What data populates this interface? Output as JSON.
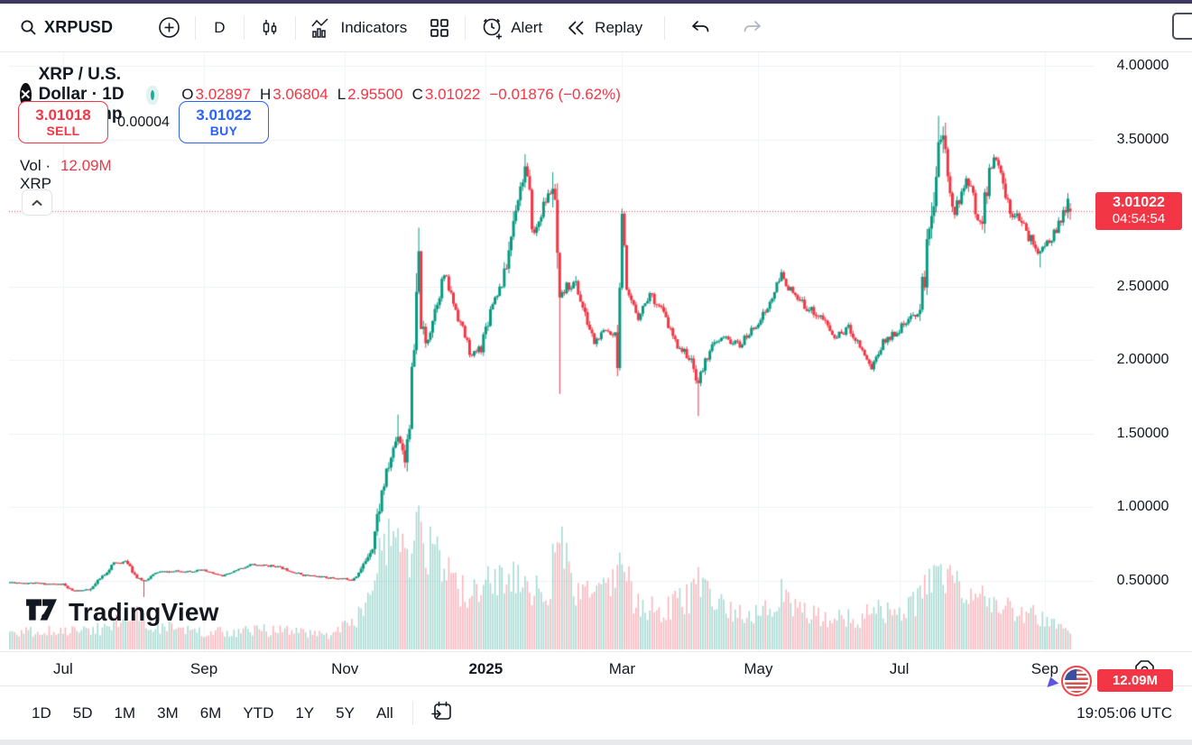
{
  "colors": {
    "up": "#089981",
    "down": "#f23645",
    "up_volume": "rgba(8,153,129,0.36)",
    "down_volume": "rgba(242,54,69,0.36)",
    "buy_blue": "#2962ff",
    "sell_red": "#f23645",
    "tag_red": "#f23645",
    "grid": "#eef1f7",
    "grid_vertical": "#f1f3f8",
    "axis_text": "#131722",
    "disabled_icon": "#b2b5be",
    "status_dot": "#22ab94"
  },
  "top_toolbar": {
    "symbol": "XRPUSD",
    "interval": "D",
    "indicators_label": "Indicators",
    "alert_label": "Alert",
    "replay_label": "Replay"
  },
  "legend": {
    "title": "XRP / U.S. Dollar · 1D · Bitstamp",
    "ohlc": {
      "o_label": "O",
      "o": "3.02897",
      "h_label": "H",
      "h": "3.06804",
      "l_label": "L",
      "l": "2.95500",
      "c_label": "C",
      "c": "3.01022",
      "change": "−0.01876 (−0.62%)"
    },
    "sell": {
      "price": "3.01018",
      "label": "SELL"
    },
    "spread": "0.00004",
    "buy": {
      "price": "3.01022",
      "label": "BUY"
    },
    "vol_label": "Vol · XRP",
    "vol_value": "12.09M"
  },
  "watermark_text": "TradingView",
  "price_axis": {
    "labeled_ticks": [
      4.0,
      3.5,
      2.5,
      2.0,
      1.5,
      1.0,
      0.5
    ],
    "last_price_tag": {
      "price": "3.01022",
      "countdown": "04:54:54"
    },
    "volume_tag": "12.09M"
  },
  "time_axis": {
    "ticks": [
      {
        "label": "Jul",
        "day": 23,
        "bold": false
      },
      {
        "label": "Sep",
        "day": 84,
        "bold": false
      },
      {
        "label": "Nov",
        "day": 145,
        "bold": false
      },
      {
        "label": "2025",
        "day": 206,
        "bold": true
      },
      {
        "label": "Mar",
        "day": 265,
        "bold": false
      },
      {
        "label": "May",
        "day": 324,
        "bold": false
      },
      {
        "label": "Jul",
        "day": 385,
        "bold": false
      },
      {
        "label": "Sep",
        "day": 448,
        "bold": false
      }
    ]
  },
  "bottom_toolbar": {
    "ranges": [
      "1D",
      "5D",
      "1M",
      "3M",
      "6M",
      "YTD",
      "1Y",
      "5Y",
      "All"
    ],
    "clock": "19:05:06 UTC"
  },
  "chart_data": {
    "type": "candlestick",
    "title": "XRP / U.S. Dollar",
    "interval": "1D",
    "exchange": "Bitstamp",
    "ylim": [
      0.022,
      4.092
    ],
    "price_gridlines": [
      0.5,
      1.0,
      1.5,
      2.0,
      2.5,
      3.0,
      3.5,
      4.0
    ],
    "current_price": 3.01022,
    "days": 460,
    "seed": 11,
    "price_anchors": [
      [
        0,
        0.49
      ],
      [
        23,
        0.475
      ],
      [
        27,
        0.43
      ],
      [
        35,
        0.44
      ],
      [
        45,
        0.62
      ],
      [
        51,
        0.63
      ],
      [
        55,
        0.52
      ],
      [
        58,
        0.5
      ],
      [
        64,
        0.56
      ],
      [
        84,
        0.57
      ],
      [
        92,
        0.53
      ],
      [
        104,
        0.61
      ],
      [
        115,
        0.6
      ],
      [
        127,
        0.54
      ],
      [
        139,
        0.52
      ],
      [
        148,
        0.51
      ],
      [
        152,
        0.57
      ],
      [
        157,
        0.75
      ],
      [
        161,
        1.1
      ],
      [
        166,
        1.4
      ],
      [
        168,
        1.5
      ],
      [
        171,
        1.35
      ],
      [
        174,
        1.75
      ],
      [
        177,
        2.6
      ],
      [
        178,
        2.25
      ],
      [
        180,
        2.1
      ],
      [
        184,
        2.35
      ],
      [
        188,
        2.58
      ],
      [
        194,
        2.3
      ],
      [
        200,
        2.02
      ],
      [
        204,
        2.1
      ],
      [
        209,
        2.4
      ],
      [
        214,
        2.55
      ],
      [
        219,
        3.05
      ],
      [
        223,
        3.3
      ],
      [
        227,
        2.85
      ],
      [
        231,
        3.05
      ],
      [
        235,
        3.18
      ],
      [
        238,
        2.4
      ],
      [
        241,
        2.5
      ],
      [
        245,
        2.52
      ],
      [
        249,
        2.3
      ],
      [
        253,
        2.12
      ],
      [
        258,
        2.2
      ],
      [
        263,
        2.18
      ],
      [
        265,
        2.85
      ],
      [
        267,
        2.45
      ],
      [
        272,
        2.3
      ],
      [
        277,
        2.45
      ],
      [
        282,
        2.35
      ],
      [
        288,
        2.12
      ],
      [
        294,
        2.02
      ],
      [
        298,
        1.85
      ],
      [
        303,
        2.08
      ],
      [
        309,
        2.15
      ],
      [
        316,
        2.1
      ],
      [
        322,
        2.22
      ],
      [
        328,
        2.35
      ],
      [
        334,
        2.58
      ],
      [
        340,
        2.42
      ],
      [
        346,
        2.35
      ],
      [
        352,
        2.28
      ],
      [
        357,
        2.15
      ],
      [
        363,
        2.22
      ],
      [
        368,
        2.1
      ],
      [
        373,
        1.95
      ],
      [
        378,
        2.12
      ],
      [
        384,
        2.2
      ],
      [
        389,
        2.26
      ],
      [
        394,
        2.35
      ],
      [
        396,
        2.6
      ],
      [
        399,
        3.0
      ],
      [
        402,
        3.5
      ],
      [
        404,
        3.52
      ],
      [
        406,
        3.22
      ],
      [
        409,
        3.02
      ],
      [
        412,
        3.12
      ],
      [
        415,
        3.25
      ],
      [
        418,
        3.0
      ],
      [
        421,
        2.95
      ],
      [
        424,
        3.3
      ],
      [
        427,
        3.36
      ],
      [
        430,
        3.2
      ],
      [
        433,
        3.0
      ],
      [
        436,
        3.02
      ],
      [
        440,
        2.86
      ],
      [
        443,
        2.8
      ],
      [
        446,
        2.72
      ],
      [
        449,
        2.8
      ],
      [
        452,
        2.86
      ],
      [
        455,
        2.94
      ],
      [
        458,
        3.08
      ],
      [
        459,
        3.01022
      ]
    ],
    "wick_overrides": [
      {
        "day": 58,
        "low": 0.39
      },
      {
        "day": 168,
        "high": 1.63
      },
      {
        "day": 177,
        "high": 2.9
      },
      {
        "day": 223,
        "high": 3.4
      },
      {
        "day": 238,
        "low": 1.77
      },
      {
        "day": 265,
        "high": 3.03
      },
      {
        "day": 298,
        "low": 1.62
      },
      {
        "day": 402,
        "high": 3.66
      },
      {
        "day": 446,
        "low": 2.63
      }
    ],
    "last_candle": {
      "open": 3.02897,
      "high": 3.06804,
      "low": 2.955,
      "close": 3.01022
    },
    "volume": {
      "last_label": "12.09M",
      "anchors": [
        [
          0,
          0.13
        ],
        [
          40,
          0.16
        ],
        [
          57,
          0.3
        ],
        [
          60,
          0.2
        ],
        [
          84,
          0.13
        ],
        [
          110,
          0.15
        ],
        [
          140,
          0.12
        ],
        [
          150,
          0.25
        ],
        [
          157,
          0.5
        ],
        [
          161,
          0.75
        ],
        [
          166,
          0.85
        ],
        [
          171,
          0.65
        ],
        [
          177,
          1.0
        ],
        [
          182,
          0.8
        ],
        [
          188,
          0.6
        ],
        [
          196,
          0.45
        ],
        [
          204,
          0.42
        ],
        [
          210,
          0.6
        ],
        [
          219,
          0.55
        ],
        [
          224,
          0.5
        ],
        [
          231,
          0.4
        ],
        [
          238,
          0.8
        ],
        [
          245,
          0.45
        ],
        [
          253,
          0.4
        ],
        [
          265,
          0.6
        ],
        [
          272,
          0.35
        ],
        [
          282,
          0.3
        ],
        [
          294,
          0.4
        ],
        [
          298,
          0.5
        ],
        [
          305,
          0.35
        ],
        [
          316,
          0.28
        ],
        [
          328,
          0.3
        ],
        [
          334,
          0.42
        ],
        [
          346,
          0.3
        ],
        [
          357,
          0.25
        ],
        [
          368,
          0.25
        ],
        [
          373,
          0.3
        ],
        [
          385,
          0.28
        ],
        [
          396,
          0.45
        ],
        [
          402,
          0.8
        ],
        [
          406,
          0.6
        ],
        [
          412,
          0.45
        ],
        [
          418,
          0.4
        ],
        [
          424,
          0.45
        ],
        [
          430,
          0.38
        ],
        [
          436,
          0.3
        ],
        [
          443,
          0.28
        ],
        [
          449,
          0.25
        ],
        [
          455,
          0.22
        ],
        [
          459,
          0.12
        ]
      ]
    }
  }
}
